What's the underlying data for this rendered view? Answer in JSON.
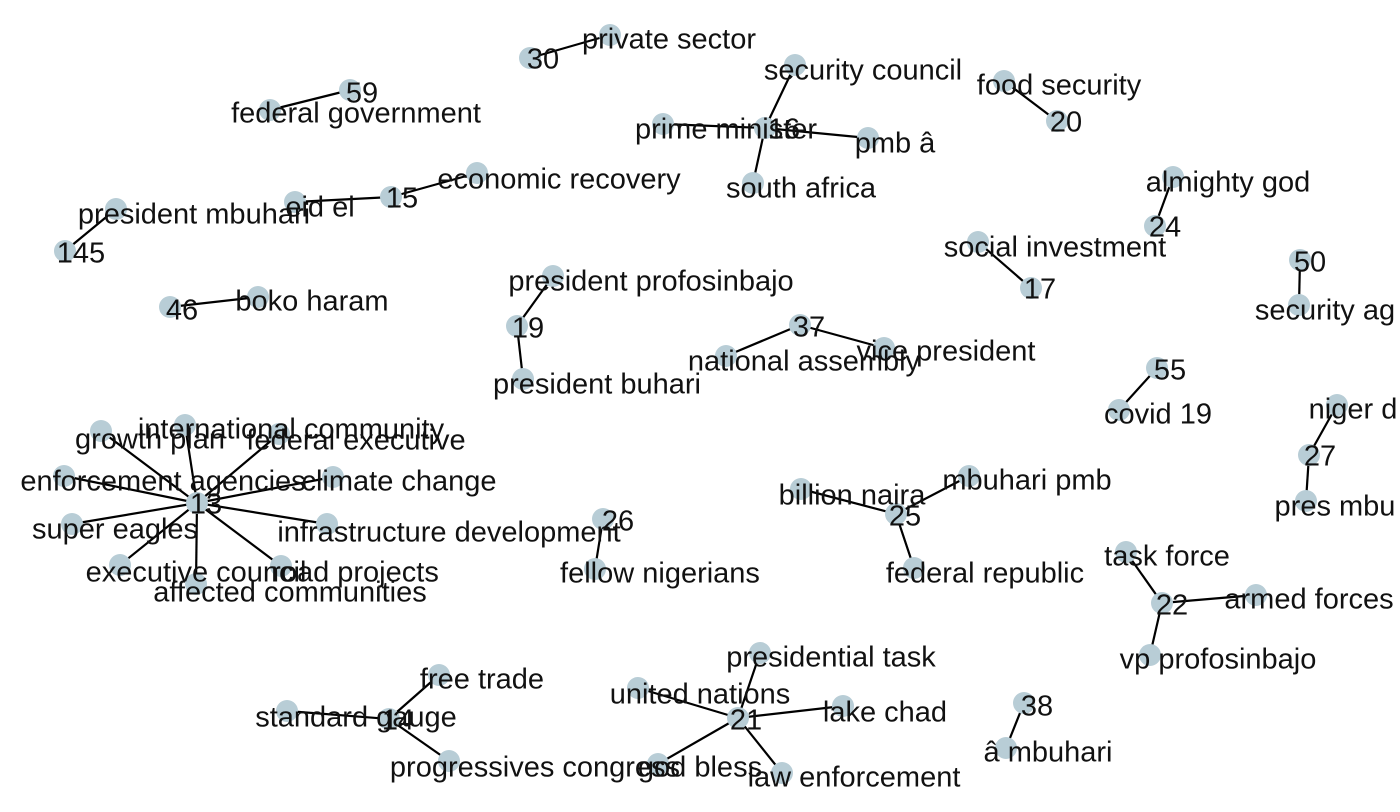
{
  "graph": {
    "node_color": "#b8cdd6",
    "edge_color": "#000000",
    "label_color": "#111111",
    "nodes": [
      {
        "id": "n30",
        "label": "30"
      },
      {
        "id": "private-sector",
        "label": "private sector"
      },
      {
        "id": "n59",
        "label": "59"
      },
      {
        "id": "federal-government",
        "label": "federal government"
      },
      {
        "id": "security-council",
        "label": "security council"
      },
      {
        "id": "prime-minister",
        "label": "prime minister"
      },
      {
        "id": "n16",
        "label": "16"
      },
      {
        "id": "pmb-a",
        "label": "pmb â"
      },
      {
        "id": "south-africa",
        "label": "south africa"
      },
      {
        "id": "food-security",
        "label": "food security"
      },
      {
        "id": "n20",
        "label": "20"
      },
      {
        "id": "economic-recovery",
        "label": "economic recovery"
      },
      {
        "id": "n15",
        "label": "15"
      },
      {
        "id": "eid-el",
        "label": "eid el"
      },
      {
        "id": "president-mbuhari",
        "label": "president mbuhari"
      },
      {
        "id": "n145",
        "label": "145"
      },
      {
        "id": "almighty-god",
        "label": "almighty god"
      },
      {
        "id": "n24",
        "label": "24"
      },
      {
        "id": "social-investment",
        "label": "social investment"
      },
      {
        "id": "n17",
        "label": "17"
      },
      {
        "id": "n50",
        "label": "50"
      },
      {
        "id": "security-ag",
        "label": "security ag"
      },
      {
        "id": "n46",
        "label": "46"
      },
      {
        "id": "boko-haram",
        "label": "boko haram"
      },
      {
        "id": "president-profosinbajo",
        "label": "president profosinbajo"
      },
      {
        "id": "n19",
        "label": "19"
      },
      {
        "id": "president-buhari",
        "label": "president buhari"
      },
      {
        "id": "n37",
        "label": "37"
      },
      {
        "id": "national-assembly",
        "label": "national assembly"
      },
      {
        "id": "vice-president",
        "label": "vice president"
      },
      {
        "id": "n55",
        "label": "55"
      },
      {
        "id": "covid-19",
        "label": "covid 19"
      },
      {
        "id": "niger-d",
        "label": "niger d"
      },
      {
        "id": "n27",
        "label": "27"
      },
      {
        "id": "pres-mbu",
        "label": "pres mbu"
      },
      {
        "id": "n13",
        "label": "13"
      },
      {
        "id": "growth-plan",
        "label": "growth plan"
      },
      {
        "id": "international-community",
        "label": "international community"
      },
      {
        "id": "federal-executive",
        "label": "federal executive"
      },
      {
        "id": "enforcement-agencies",
        "label": "enforcement agencies"
      },
      {
        "id": "climate-change",
        "label": "climate change"
      },
      {
        "id": "super-eagles",
        "label": "super eagles"
      },
      {
        "id": "infrastructure-development",
        "label": "infrastructure development"
      },
      {
        "id": "executive-council",
        "label": "executive council"
      },
      {
        "id": "road-projects",
        "label": "road projects"
      },
      {
        "id": "affected-communities",
        "label": "affected communities"
      },
      {
        "id": "n26",
        "label": "26"
      },
      {
        "id": "fellow-nigerians",
        "label": "fellow nigerians"
      },
      {
        "id": "billion-naira",
        "label": "billion naira"
      },
      {
        "id": "mbuhari-pmb",
        "label": "mbuhari pmb"
      },
      {
        "id": "n25",
        "label": "25"
      },
      {
        "id": "federal-republic",
        "label": "federal republic"
      },
      {
        "id": "task-force",
        "label": "task force"
      },
      {
        "id": "n22",
        "label": "22"
      },
      {
        "id": "armed-forces",
        "label": "armed forces"
      },
      {
        "id": "vp-profosinbajo",
        "label": "vp profosinbajo"
      },
      {
        "id": "presidential-task",
        "label": "presidential task"
      },
      {
        "id": "united-nations",
        "label": "united nations"
      },
      {
        "id": "n21",
        "label": "21"
      },
      {
        "id": "lake-chad",
        "label": "lake chad"
      },
      {
        "id": "god-bless",
        "label": "god bless"
      },
      {
        "id": "law-enforcement",
        "label": "law enforcement"
      },
      {
        "id": "free-trade",
        "label": "free trade"
      },
      {
        "id": "standard-gauge",
        "label": "standard gauge"
      },
      {
        "id": "n14",
        "label": "14"
      },
      {
        "id": "progressives-congress",
        "label": "progressives congress"
      },
      {
        "id": "n38",
        "label": "38"
      },
      {
        "id": "a-mbuhari",
        "label": "â mbuhari"
      }
    ],
    "edges": [
      [
        "n30",
        "private-sector"
      ],
      [
        "n59",
        "federal-government"
      ],
      [
        "n16",
        "security-council"
      ],
      [
        "n16",
        "prime-minister"
      ],
      [
        "n16",
        "pmb-a"
      ],
      [
        "n16",
        "south-africa"
      ],
      [
        "food-security",
        "n20"
      ],
      [
        "n15",
        "economic-recovery"
      ],
      [
        "n15",
        "eid-el"
      ],
      [
        "president-mbuhari",
        "n145"
      ],
      [
        "almighty-god",
        "n24"
      ],
      [
        "social-investment",
        "n17"
      ],
      [
        "n50",
        "security-ag"
      ],
      [
        "n46",
        "boko-haram"
      ],
      [
        "n19",
        "president-profosinbajo"
      ],
      [
        "n19",
        "president-buhari"
      ],
      [
        "n37",
        "national-assembly"
      ],
      [
        "n37",
        "vice-president"
      ],
      [
        "n55",
        "covid-19"
      ],
      [
        "n27",
        "niger-d"
      ],
      [
        "n27",
        "pres-mbu"
      ],
      [
        "n13",
        "growth-plan"
      ],
      [
        "n13",
        "international-community"
      ],
      [
        "n13",
        "federal-executive"
      ],
      [
        "n13",
        "enforcement-agencies"
      ],
      [
        "n13",
        "climate-change"
      ],
      [
        "n13",
        "super-eagles"
      ],
      [
        "n13",
        "infrastructure-development"
      ],
      [
        "n13",
        "executive-council"
      ],
      [
        "n13",
        "road-projects"
      ],
      [
        "n13",
        "affected-communities"
      ],
      [
        "n26",
        "fellow-nigerians"
      ],
      [
        "n25",
        "billion-naira"
      ],
      [
        "n25",
        "mbuhari-pmb"
      ],
      [
        "n25",
        "federal-republic"
      ],
      [
        "n22",
        "task-force"
      ],
      [
        "n22",
        "armed-forces"
      ],
      [
        "n22",
        "vp-profosinbajo"
      ],
      [
        "n21",
        "presidential-task"
      ],
      [
        "n21",
        "united-nations"
      ],
      [
        "n21",
        "lake-chad"
      ],
      [
        "n21",
        "god-bless"
      ],
      [
        "n21",
        "law-enforcement"
      ],
      [
        "n14",
        "free-trade"
      ],
      [
        "n14",
        "standard-gauge"
      ],
      [
        "n14",
        "progressives-congress"
      ],
      [
        "n38",
        "a-mbuhari"
      ]
    ]
  }
}
